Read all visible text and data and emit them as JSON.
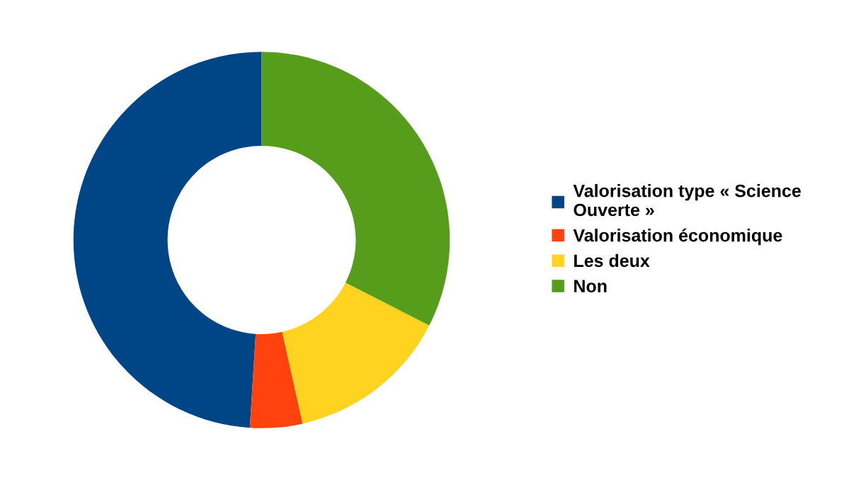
{
  "chart_data": {
    "type": "donut",
    "categories": [
      "Valorisation type « Science Ouverte »",
      "Valorisation économique",
      "Les deux",
      "Non"
    ],
    "values": [
      49,
      4.5,
      14,
      32.5
    ],
    "colors": [
      "#004586",
      "#ff420e",
      "#ffd320",
      "#579d1c"
    ],
    "legend": "right"
  }
}
